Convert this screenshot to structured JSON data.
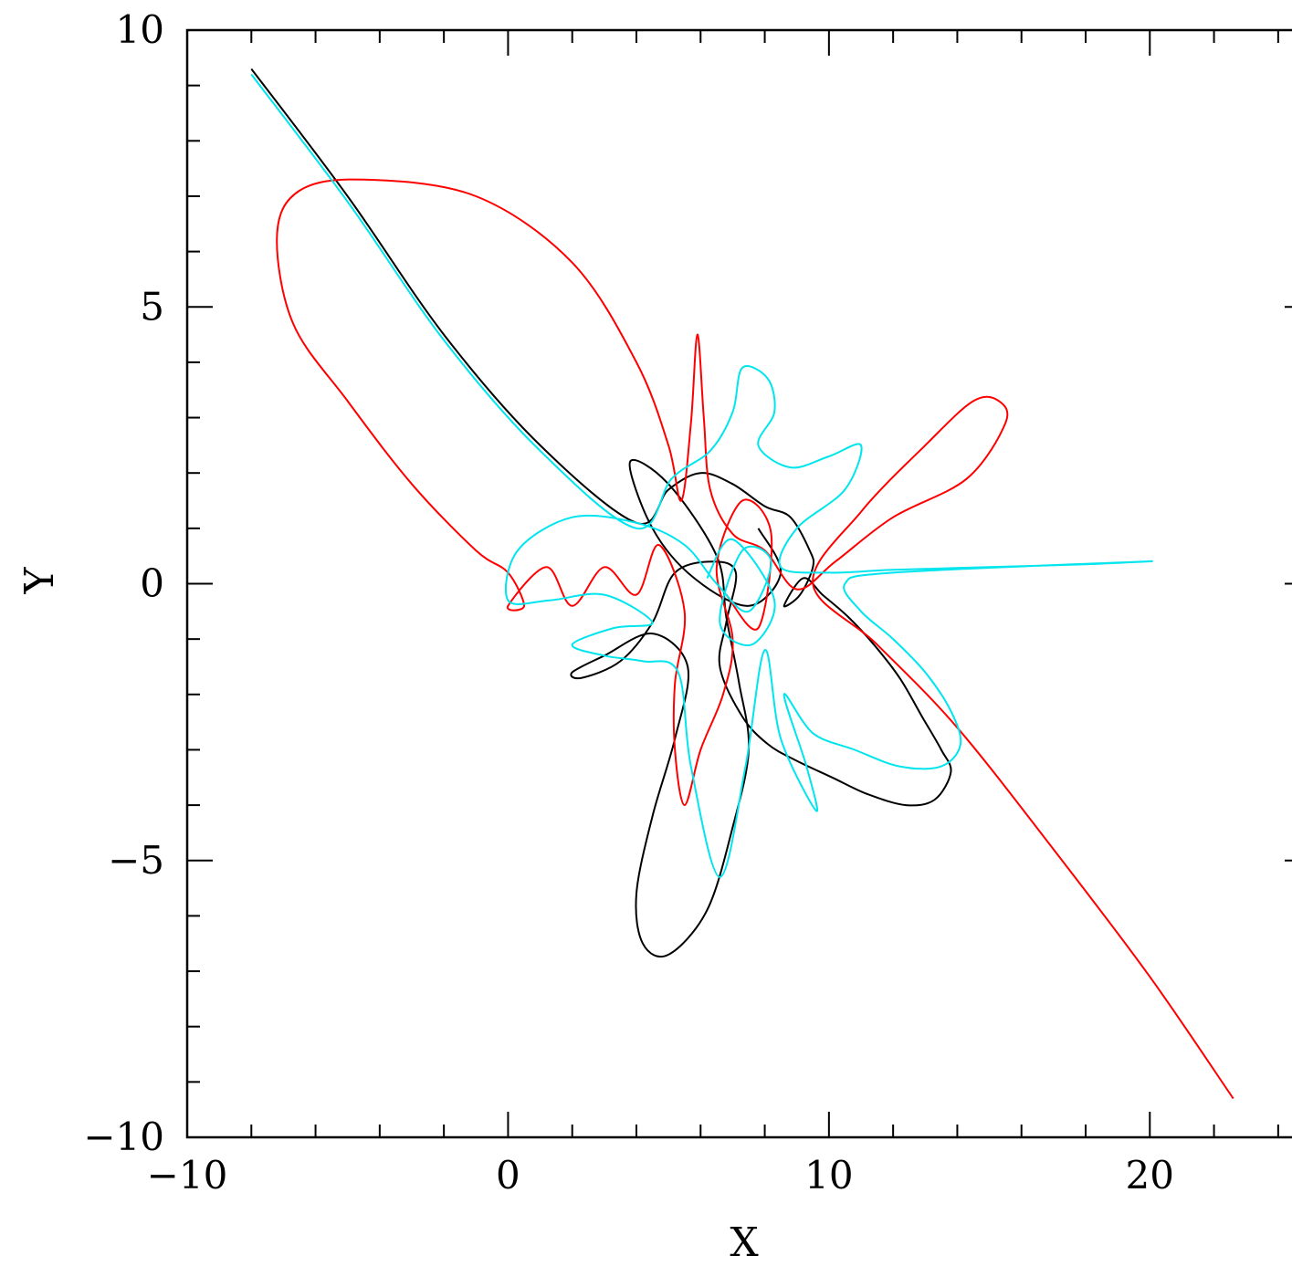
{
  "chart_data": {
    "type": "line",
    "title": "",
    "xlabel": "X",
    "ylabel": "Y",
    "xlim": [
      -10,
      25
    ],
    "ylim": [
      -10,
      10
    ],
    "x_major_ticks": [
      -10,
      0,
      10,
      20
    ],
    "y_major_ticks": [
      -10,
      -5,
      0,
      5,
      10
    ],
    "x_tick_labels": [
      "−10",
      "0",
      "10",
      "20"
    ],
    "y_tick_labels": [
      "−10",
      "−5",
      "0",
      "5",
      "10"
    ],
    "x_minor_step": 2,
    "y_minor_step": 1,
    "grid": false,
    "legend": "none",
    "series": [
      {
        "color": "#000000",
        "points": [
          [
            -8,
            9.3
          ],
          [
            -5,
            7.0
          ],
          [
            -2,
            4.5
          ],
          [
            1,
            2.5
          ],
          [
            4,
            1.1
          ],
          [
            5,
            1.7
          ],
          [
            6,
            2.0
          ],
          [
            7,
            1.8
          ],
          [
            8,
            1.4
          ],
          [
            8.8,
            1.2
          ],
          [
            9.4,
            0.6
          ],
          [
            9.5,
            0.3
          ],
          [
            9.1,
            -0.2
          ],
          [
            8.6,
            -0.4
          ],
          [
            9.2,
            0.1
          ],
          [
            9.8,
            -0.2
          ],
          [
            10.6,
            -0.6
          ],
          [
            11.4,
            -1.1
          ],
          [
            12.2,
            -1.7
          ],
          [
            12.9,
            -2.4
          ],
          [
            13.5,
            -3.0
          ],
          [
            13.8,
            -3.4
          ],
          [
            13.3,
            -3.9
          ],
          [
            12.4,
            -4.0
          ],
          [
            11.2,
            -3.8
          ],
          [
            10.1,
            -3.5
          ],
          [
            9.0,
            -3.2
          ],
          [
            8.1,
            -2.9
          ],
          [
            7.3,
            -2.4
          ],
          [
            6.6,
            -1.5
          ],
          [
            6.8,
            -0.7
          ],
          [
            7.1,
            0.2
          ],
          [
            6.4,
            0.4
          ],
          [
            5.2,
            0.2
          ],
          [
            4.5,
            -0.7
          ],
          [
            3.5,
            -1.4
          ],
          [
            2.3,
            -1.7
          ],
          [
            2.0,
            -1.6
          ],
          [
            3.0,
            -1.3
          ],
          [
            4.5,
            -0.9
          ],
          [
            5.6,
            -1.5
          ],
          [
            5.2,
            -2.8
          ],
          [
            4.5,
            -4.2
          ],
          [
            4.0,
            -5.6
          ],
          [
            4.2,
            -6.5
          ],
          [
            5.0,
            -6.7
          ],
          [
            6.2,
            -5.9
          ],
          [
            7.0,
            -4.4
          ],
          [
            7.5,
            -3.0
          ],
          [
            7.2,
            -1.8
          ],
          [
            6.8,
            -0.6
          ],
          [
            6.5,
            0.5
          ],
          [
            5.0,
            1.8
          ],
          [
            3.8,
            2.2
          ],
          [
            4.5,
            1.0
          ],
          [
            5.8,
            0.1
          ],
          [
            7.5,
            -0.4
          ],
          [
            8.5,
            0.2
          ],
          [
            7.8,
            1.0
          ]
        ]
      },
      {
        "color": "#ff0000",
        "points": [
          [
            22.6,
            -9.3
          ],
          [
            20,
            -7.1
          ],
          [
            17,
            -4.8
          ],
          [
            14,
            -2.6
          ],
          [
            11.5,
            -1.1
          ],
          [
            9.5,
            0.0
          ],
          [
            11,
            1.3
          ],
          [
            13,
            2.5
          ],
          [
            14.5,
            3.3
          ],
          [
            15.3,
            3.3
          ],
          [
            15.5,
            2.9
          ],
          [
            14.3,
            1.9
          ],
          [
            12.0,
            1.2
          ],
          [
            10.2,
            0.4
          ],
          [
            9.0,
            -0.1
          ],
          [
            8.0,
            0.6
          ],
          [
            7.0,
            0.9
          ],
          [
            6.3,
            1.7
          ],
          [
            6.1,
            3.0
          ],
          [
            5.9,
            4.5
          ],
          [
            5.7,
            2.9
          ],
          [
            5.4,
            1.5
          ],
          [
            5.0,
            2.5
          ],
          [
            4.0,
            4.0
          ],
          [
            2.0,
            5.8
          ],
          [
            -1.0,
            7.0
          ],
          [
            -4.5,
            7.3
          ],
          [
            -6.5,
            7.1
          ],
          [
            -7.2,
            6.3
          ],
          [
            -6.7,
            4.7
          ],
          [
            -5.0,
            3.3
          ],
          [
            -3.0,
            1.8
          ],
          [
            -1.0,
            0.6
          ],
          [
            0.0,
            0.2
          ],
          [
            0.5,
            -0.4
          ],
          [
            0.0,
            -0.4
          ],
          [
            1.2,
            0.3
          ],
          [
            2.0,
            -0.4
          ],
          [
            3.0,
            0.3
          ],
          [
            4.0,
            -0.2
          ],
          [
            4.7,
            0.7
          ],
          [
            5.5,
            -0.5
          ],
          [
            5.2,
            -1.8
          ],
          [
            5.2,
            -3.0
          ],
          [
            5.5,
            -4.0
          ],
          [
            6.0,
            -3.0
          ],
          [
            6.7,
            -2.0
          ],
          [
            7.0,
            -1.0
          ],
          [
            6.5,
            0.3
          ],
          [
            7.3,
            1.5
          ],
          [
            8.2,
            0.9
          ],
          [
            7.8,
            -0.8
          ],
          [
            6.8,
            -0.2
          ]
        ]
      },
      {
        "color": "#00e5ee",
        "points": [
          [
            -8,
            9.2
          ],
          [
            -5,
            6.9
          ],
          [
            -2,
            4.4
          ],
          [
            1,
            2.4
          ],
          [
            4,
            1.0
          ],
          [
            5.1,
            1.9
          ],
          [
            6.3,
            2.4
          ],
          [
            7.0,
            3.1
          ],
          [
            7.3,
            3.9
          ],
          [
            8.1,
            3.7
          ],
          [
            8.3,
            3.1
          ],
          [
            7.8,
            2.5
          ],
          [
            8.8,
            2.1
          ],
          [
            10.0,
            2.3
          ],
          [
            11.0,
            2.5
          ],
          [
            10.5,
            1.7
          ],
          [
            9.0,
            1.0
          ],
          [
            8.5,
            0.3
          ],
          [
            10.0,
            0.2
          ],
          [
            12.0,
            0.25
          ],
          [
            15.0,
            0.3
          ],
          [
            18.0,
            0.35
          ],
          [
            19.8,
            0.4
          ],
          [
            12.0,
            0.2
          ],
          [
            10.5,
            0.0
          ],
          [
            11.0,
            -0.5
          ],
          [
            12.0,
            -1.0
          ],
          [
            13.0,
            -1.6
          ],
          [
            13.8,
            -2.3
          ],
          [
            14.1,
            -2.9
          ],
          [
            13.5,
            -3.3
          ],
          [
            12.2,
            -3.3
          ],
          [
            10.8,
            -3.0
          ],
          [
            9.5,
            -2.7
          ],
          [
            8.6,
            -2.0
          ],
          [
            9.3,
            -3.3
          ],
          [
            9.6,
            -4.1
          ],
          [
            8.5,
            -2.8
          ],
          [
            8.0,
            -1.2
          ],
          [
            7.4,
            -3.3
          ],
          [
            6.6,
            -5.3
          ],
          [
            5.7,
            -3.3
          ],
          [
            5.3,
            -1.6
          ],
          [
            4.2,
            -1.4
          ],
          [
            3.0,
            -1.3
          ],
          [
            2.0,
            -1.1
          ],
          [
            3.3,
            -0.8
          ],
          [
            4.5,
            -0.7
          ],
          [
            3.0,
            -0.2
          ],
          [
            1.3,
            -0.3
          ],
          [
            0.0,
            -0.3
          ],
          [
            0.3,
            0.6
          ],
          [
            2.0,
            1.2
          ],
          [
            4.0,
            1.1
          ],
          [
            5.5,
            0.7
          ],
          [
            6.5,
            0.0
          ],
          [
            7.5,
            -0.5
          ],
          [
            8.2,
            0.4
          ],
          [
            7.3,
            0.6
          ],
          [
            6.6,
            -0.7
          ],
          [
            7.6,
            -1.1
          ],
          [
            8.3,
            -0.3
          ],
          [
            7.0,
            0.8
          ],
          [
            6.2,
            0.1
          ]
        ]
      }
    ]
  }
}
